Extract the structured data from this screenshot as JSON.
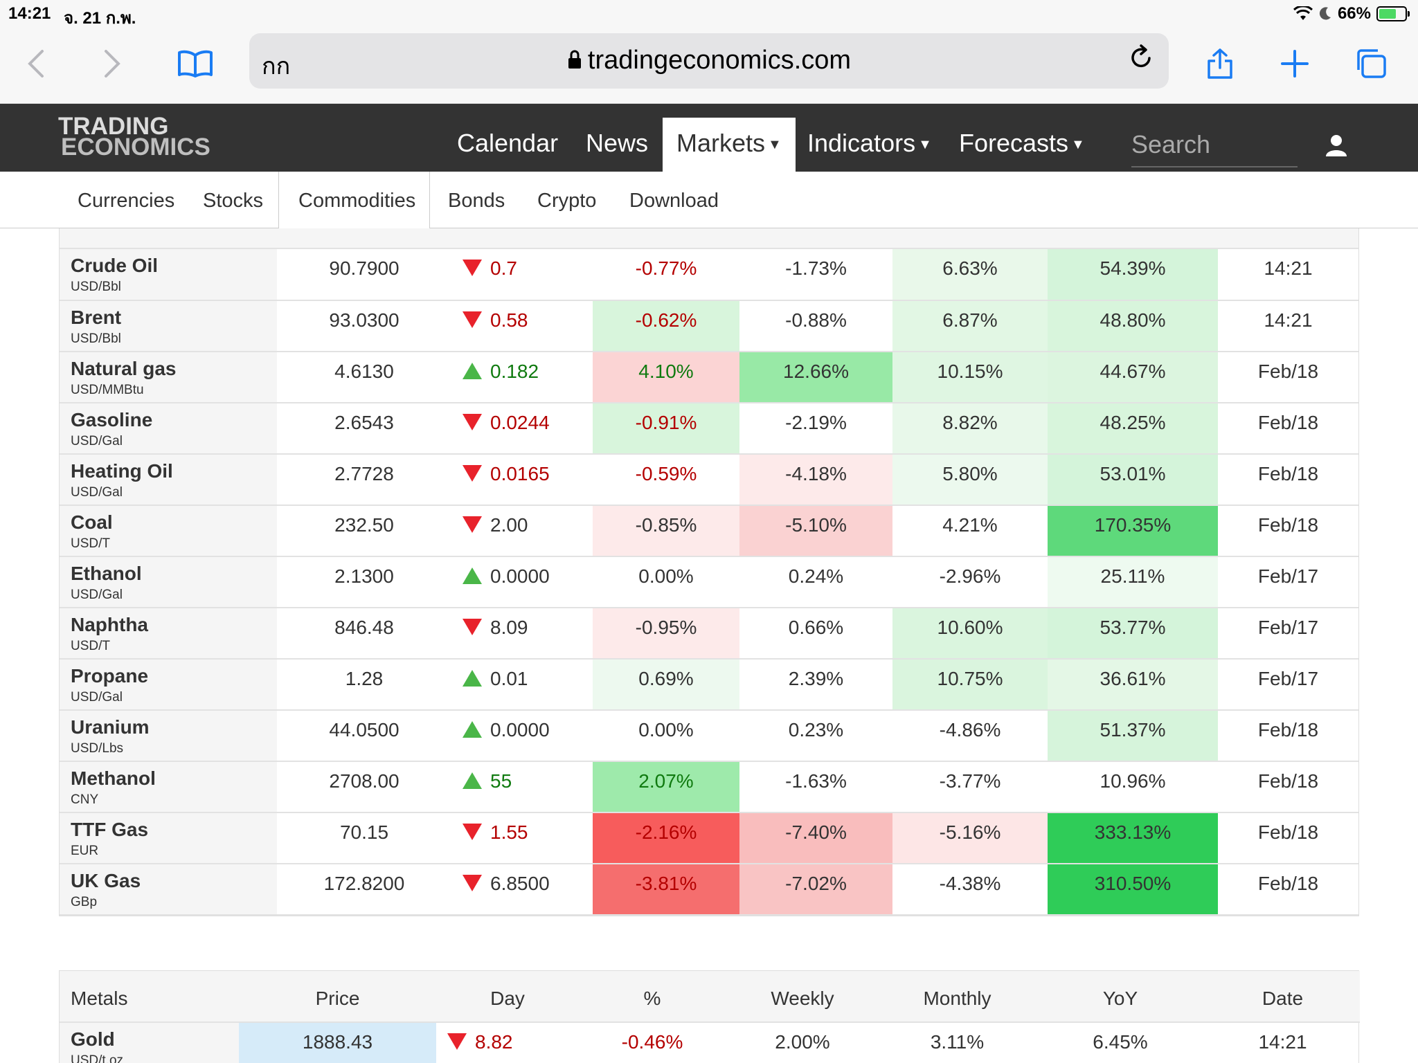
{
  "status": {
    "time": "14:21",
    "date": "จ. 21 ก.พ.",
    "battery": "66%"
  },
  "browser": {
    "aa_label": "กก",
    "host": "tradingeconomics.com"
  },
  "site": {
    "logo_line1": "TRADING",
    "logo_line2": "ECONOMICS",
    "nav": {
      "calendar": "Calendar",
      "news": "News",
      "markets": "Markets",
      "indicators": "Indicators",
      "forecasts": "Forecasts"
    },
    "search_placeholder": "Search"
  },
  "subnav": [
    "Currencies",
    "Stocks",
    "Commodities",
    "Bonds",
    "Crypto",
    "Download"
  ],
  "energy_rows": [
    {
      "name": "Crude Oil",
      "unit": "USD/Bbl",
      "price": "90.7900",
      "dir": "down",
      "day": "0.7",
      "pct": "-0.77%",
      "weekly": "-1.73%",
      "monthly": "6.63%",
      "yoy": "54.39%",
      "date": "14:21",
      "c_pct": "#ffffff",
      "c_wk": "#ffffff",
      "c_mo": "#e9f8ea",
      "c_yoy": "#d4f4da"
    },
    {
      "name": "Brent",
      "unit": "USD/Bbl",
      "price": "93.0300",
      "dir": "down",
      "day": "0.58",
      "pct": "-0.62%",
      "weekly": "-0.88%",
      "monthly": "6.87%",
      "yoy": "48.80%",
      "date": "14:21",
      "c_pct": "#d8f5dc",
      "c_wk": "#ffffff",
      "c_mo": "#e2f7e4",
      "c_yoy": "#d8f5dc"
    },
    {
      "name": "Natural gas",
      "unit": "USD/MMBtu",
      "price": "4.6130",
      "dir": "up",
      "day": "0.182",
      "pct": "4.10%",
      "weekly": "12.66%",
      "monthly": "10.15%",
      "yoy": "44.67%",
      "date": "Feb/18",
      "c_pct": "#fbd4d4",
      "c_wk": "#98e9a6",
      "c_mo": "#dff6e2",
      "c_yoy": "#dcf5df"
    },
    {
      "name": "Gasoline",
      "unit": "USD/Gal",
      "price": "2.6543",
      "dir": "down",
      "day": "0.0244",
      "pct": "-0.91%",
      "weekly": "-2.19%",
      "monthly": "8.82%",
      "yoy": "48.25%",
      "date": "Feb/18",
      "c_pct": "#d8f5dc",
      "c_wk": "#ffffff",
      "c_mo": "#e8f8ea",
      "c_yoy": "#d8f5dc"
    },
    {
      "name": "Heating Oil",
      "unit": "USD/Gal",
      "price": "2.7728",
      "dir": "down",
      "day": "0.0165",
      "pct": "-0.59%",
      "weekly": "-4.18%",
      "monthly": "5.80%",
      "yoy": "53.01%",
      "date": "Feb/18",
      "c_pct": "#ffffff",
      "c_wk": "#fdeaea",
      "c_mo": "#ecf9ee",
      "c_yoy": "#d4f4da"
    },
    {
      "name": "Coal",
      "unit": "USD/T",
      "price": "232.50",
      "dir": "down",
      "day": "2.00",
      "pct": "-0.85%",
      "weekly": "-5.10%",
      "monthly": "4.21%",
      "yoy": "170.35%",
      "date": "Feb/18",
      "c_pct": "#fdeaea",
      "c_wk": "#fad2d2",
      "c_mo": "#ffffff",
      "c_yoy": "#5ed97b"
    },
    {
      "name": "Ethanol",
      "unit": "USD/Gal",
      "price": "2.1300",
      "dir": "up",
      "day": "0.0000",
      "pct": "0.00%",
      "weekly": "0.24%",
      "monthly": "-2.96%",
      "yoy": "25.11%",
      "date": "Feb/17",
      "c_pct": "#ffffff",
      "c_wk": "#ffffff",
      "c_mo": "#ffffff",
      "c_yoy": "#eefaf0"
    },
    {
      "name": "Naphtha",
      "unit": "USD/T",
      "price": "846.48",
      "dir": "down",
      "day": "8.09",
      "pct": "-0.95%",
      "weekly": "0.66%",
      "monthly": "10.60%",
      "yoy": "53.77%",
      "date": "Feb/17",
      "c_pct": "#fdeaea",
      "c_wk": "#ffffff",
      "c_mo": "#daf5de",
      "c_yoy": "#d4f4da"
    },
    {
      "name": "Propane",
      "unit": "USD/Gal",
      "price": "1.28",
      "dir": "up",
      "day": "0.01",
      "pct": "0.69%",
      "weekly": "2.39%",
      "monthly": "10.75%",
      "yoy": "36.61%",
      "date": "Feb/17",
      "c_pct": "#edf9ef",
      "c_wk": "#ffffff",
      "c_mo": "#daf5de",
      "c_yoy": "#e4f7e6"
    },
    {
      "name": "Uranium",
      "unit": "USD/Lbs",
      "price": "44.0500",
      "dir": "up",
      "day": "0.0000",
      "pct": "0.00%",
      "weekly": "0.23%",
      "monthly": "-4.86%",
      "yoy": "51.37%",
      "date": "Feb/18",
      "c_pct": "#ffffff",
      "c_wk": "#ffffff",
      "c_mo": "#ffffff",
      "c_yoy": "#d6f4db"
    },
    {
      "name": "Methanol",
      "unit": "CNY",
      "price": "2708.00",
      "dir": "up",
      "day": "55",
      "pct": "2.07%",
      "weekly": "-1.63%",
      "monthly": "-3.77%",
      "yoy": "10.96%",
      "date": "Feb/18",
      "c_pct": "#9eeaab",
      "c_wk": "#ffffff",
      "c_mo": "#ffffff",
      "c_yoy": "#ffffff"
    },
    {
      "name": "TTF Gas",
      "unit": "EUR",
      "price": "70.15",
      "dir": "down",
      "day": "1.55",
      "pct": "-2.16%",
      "weekly": "-7.40%",
      "monthly": "-5.16%",
      "yoy": "333.13%",
      "date": "Feb/18",
      "c_pct": "#f75c5c",
      "c_wk": "#f9bdbd",
      "c_mo": "#fde6e6",
      "c_yoy": "#2fcc58"
    },
    {
      "name": "UK Gas",
      "unit": "GBp",
      "price": "172.8200",
      "dir": "down",
      "day": "6.8500",
      "pct": "-3.81%",
      "weekly": "-7.02%",
      "monthly": "-4.38%",
      "yoy": "310.50%",
      "date": "Feb/18",
      "c_pct": "#f56e6e",
      "c_wk": "#f9c4c4",
      "c_mo": "#ffffff",
      "c_yoy": "#2fcc58"
    }
  ],
  "metals": {
    "headers": [
      "Metals",
      "Price",
      "Day",
      "%",
      "Weekly",
      "Monthly",
      "YoY",
      "Date"
    ],
    "rows": [
      {
        "name": "Gold",
        "unit": "USD/t.oz",
        "price": "1888.43",
        "dir": "down",
        "day": "8.82",
        "pct": "-0.46%",
        "weekly": "2.00%",
        "monthly": "3.11%",
        "yoy": "6.45%",
        "date": "14:21",
        "c_price": "#d6ebf9"
      }
    ]
  },
  "colors": {
    "red_text": "#b40000",
    "green_text": "#0f7a0f",
    "nav_bg": "#333333",
    "link_blue": "#1a7cf3"
  }
}
